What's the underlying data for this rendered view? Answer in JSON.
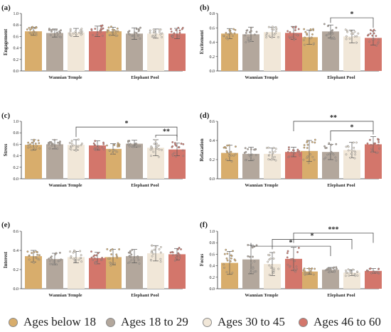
{
  "chart_data": [
    {
      "panel": "(a)",
      "type": "bar",
      "ylabel": "Engagement",
      "ylim": [
        0,
        1.0
      ],
      "yticks": [
        "0.0",
        "0.2",
        "0.4",
        "0.6",
        "0.8",
        "1.0"
      ],
      "categories": [
        "Wannian Temple",
        "Elephant Pool"
      ],
      "series": [
        {
          "name": "Ages below 18",
          "values": [
            0.69,
            0.69
          ],
          "errors": [
            0.07,
            0.07
          ]
        },
        {
          "name": "Ages 18 to 29",
          "values": [
            0.66,
            0.65
          ],
          "errors": [
            0.07,
            0.1
          ]
        },
        {
          "name": "Ages 30 to 45",
          "values": [
            0.67,
            0.65
          ],
          "errors": [
            0.07,
            0.08
          ]
        },
        {
          "name": "Ages 46 to 60",
          "values": [
            0.69,
            0.65
          ],
          "errors": [
            0.09,
            0.09
          ]
        }
      ],
      "significance": []
    },
    {
      "panel": "(b)",
      "type": "bar",
      "ylabel": "Excitement",
      "ylim": [
        0,
        0.8
      ],
      "yticks": [
        "0.0",
        "0.2",
        "0.4",
        "0.6",
        "0.8"
      ],
      "categories": [
        "Wannian Temple",
        "Elephant Pool"
      ],
      "series": [
        {
          "name": "Ages below 18",
          "values": [
            0.52,
            0.47
          ],
          "errors": [
            0.07,
            0.1
          ]
        },
        {
          "name": "Ages 18 to 29",
          "values": [
            0.51,
            0.55
          ],
          "errors": [
            0.1,
            0.09
          ]
        },
        {
          "name": "Ages 30 to 45",
          "values": [
            0.54,
            0.48
          ],
          "errors": [
            0.07,
            0.09
          ]
        },
        {
          "name": "Ages 46 to 60",
          "values": [
            0.53,
            0.46
          ],
          "errors": [
            0.09,
            0.1
          ]
        }
      ],
      "significance": [
        {
          "label": "*",
          "from": [
            1,
            1
          ],
          "to": [
            1,
            3
          ],
          "level": 0.74
        }
      ]
    },
    {
      "panel": "(c)",
      "type": "bar",
      "ylabel": "Stress",
      "ylim": [
        0,
        1.0
      ],
      "yticks": [
        "0.0",
        "0.2",
        "0.4",
        "0.6",
        "0.8",
        "1.0"
      ],
      "categories": [
        "Wannian Temple",
        "Elephant Pool"
      ],
      "series": [
        {
          "name": "Ages below 18",
          "values": [
            0.59,
            0.52
          ],
          "errors": [
            0.09,
            0.09
          ]
        },
        {
          "name": "Ages 18 to 29",
          "values": [
            0.6,
            0.61
          ],
          "errors": [
            0.08,
            0.06
          ]
        },
        {
          "name": "Ages 30 to 45",
          "values": [
            0.59,
            0.54
          ],
          "errors": [
            0.09,
            0.14
          ]
        },
        {
          "name": "Ages 46 to 60",
          "values": [
            0.58,
            0.51
          ],
          "errors": [
            0.08,
            0.11
          ]
        }
      ],
      "significance": [
        {
          "label": "*",
          "from": [
            0,
            2
          ],
          "to": [
            1,
            3
          ],
          "level": 0.9
        },
        {
          "label": "**",
          "from": [
            1,
            2
          ],
          "to": [
            1,
            3
          ],
          "level": 0.76
        }
      ]
    },
    {
      "panel": "(d)",
      "type": "bar",
      "ylabel": "Relaxation",
      "ylim": [
        0,
        0.6
      ],
      "yticks": [
        "0.0",
        "0.2",
        "0.4",
        "0.6"
      ],
      "categories": [
        "Wannian Temple",
        "Elephant Pool"
      ],
      "series": [
        {
          "name": "Ages below 18",
          "values": [
            0.27,
            0.29
          ],
          "errors": [
            0.08,
            0.11
          ]
        },
        {
          "name": "Ages 18 to 29",
          "values": [
            0.26,
            0.28
          ],
          "errors": [
            0.07,
            0.08
          ]
        },
        {
          "name": "Ages 30 to 45",
          "values": [
            0.26,
            0.3
          ],
          "errors": [
            0.06,
            0.08
          ]
        },
        {
          "name": "Ages 46 to 60",
          "values": [
            0.28,
            0.36
          ],
          "errors": [
            0.05,
            0.08
          ]
        }
      ],
      "significance": [
        {
          "label": "**",
          "from": [
            0,
            3
          ],
          "to": [
            1,
            3
          ],
          "level": 0.6
        },
        {
          "label": "*",
          "from": [
            1,
            1
          ],
          "to": [
            1,
            3
          ],
          "level": 0.5
        }
      ]
    },
    {
      "panel": "(e)",
      "type": "bar",
      "ylabel": "Interest",
      "ylim": [
        0,
        0.6
      ],
      "yticks": [
        "0.0",
        "0.2",
        "0.4",
        "0.6"
      ],
      "categories": [
        "Wannian Temple",
        "Elephant Pool"
      ],
      "series": [
        {
          "name": "Ages below 18",
          "values": [
            0.34,
            0.33
          ],
          "errors": [
            0.06,
            0.08
          ]
        },
        {
          "name": "Ages 18 to 29",
          "values": [
            0.31,
            0.34
          ],
          "errors": [
            0.06,
            0.07
          ]
        },
        {
          "name": "Ages 30 to 45",
          "values": [
            0.33,
            0.37
          ],
          "errors": [
            0.06,
            0.08
          ]
        },
        {
          "name": "Ages 46 to 60",
          "values": [
            0.32,
            0.36
          ],
          "errors": [
            0.06,
            0.06
          ]
        }
      ],
      "significance": []
    },
    {
      "panel": "(f)",
      "type": "bar",
      "ylabel": "Focus",
      "ylim": [
        0,
        1.0
      ],
      "yticks": [
        "0.0",
        "0.2",
        "0.4",
        "0.6",
        "0.8",
        "1.0"
      ],
      "categories": [
        "Wannian Temple",
        "Elephant Pool"
      ],
      "series": [
        {
          "name": "Ages below 18",
          "values": [
            0.45,
            0.3
          ],
          "errors": [
            0.2,
            0.05
          ]
        },
        {
          "name": "Ages 18 to 29",
          "values": [
            0.51,
            0.33
          ],
          "errors": [
            0.25,
            0.04
          ]
        },
        {
          "name": "Ages 30 to 45",
          "values": [
            0.43,
            0.28
          ],
          "errors": [
            0.2,
            0.05
          ]
        },
        {
          "name": "Ages 46 to 60",
          "values": [
            0.52,
            0.31
          ],
          "errors": [
            0.2,
            0.04
          ]
        }
      ],
      "significance": [
        {
          "label": "***",
          "from": [
            0,
            3
          ],
          "to": [
            1,
            3
          ],
          "level": 0.97
        },
        {
          "label": "*",
          "from": [
            0,
            2
          ],
          "to": [
            1,
            2
          ],
          "level": 0.86
        },
        {
          "label": "*",
          "from": [
            0,
            1
          ],
          "to": [
            1,
            1
          ],
          "level": 0.74
        }
      ]
    }
  ],
  "colors": {
    "Ages below 18": "#d8ad6c",
    "Ages 18 to 29": "#b3a79c",
    "Ages 30 to 45": "#f1e7d8",
    "Ages 46 to 60": "#d3766b"
  },
  "legend": {
    "items": [
      "Ages below 18",
      "Ages 18 to 29",
      "Ages 30 to 45",
      "Ages 46 to 60"
    ],
    "position": "bottom"
  }
}
